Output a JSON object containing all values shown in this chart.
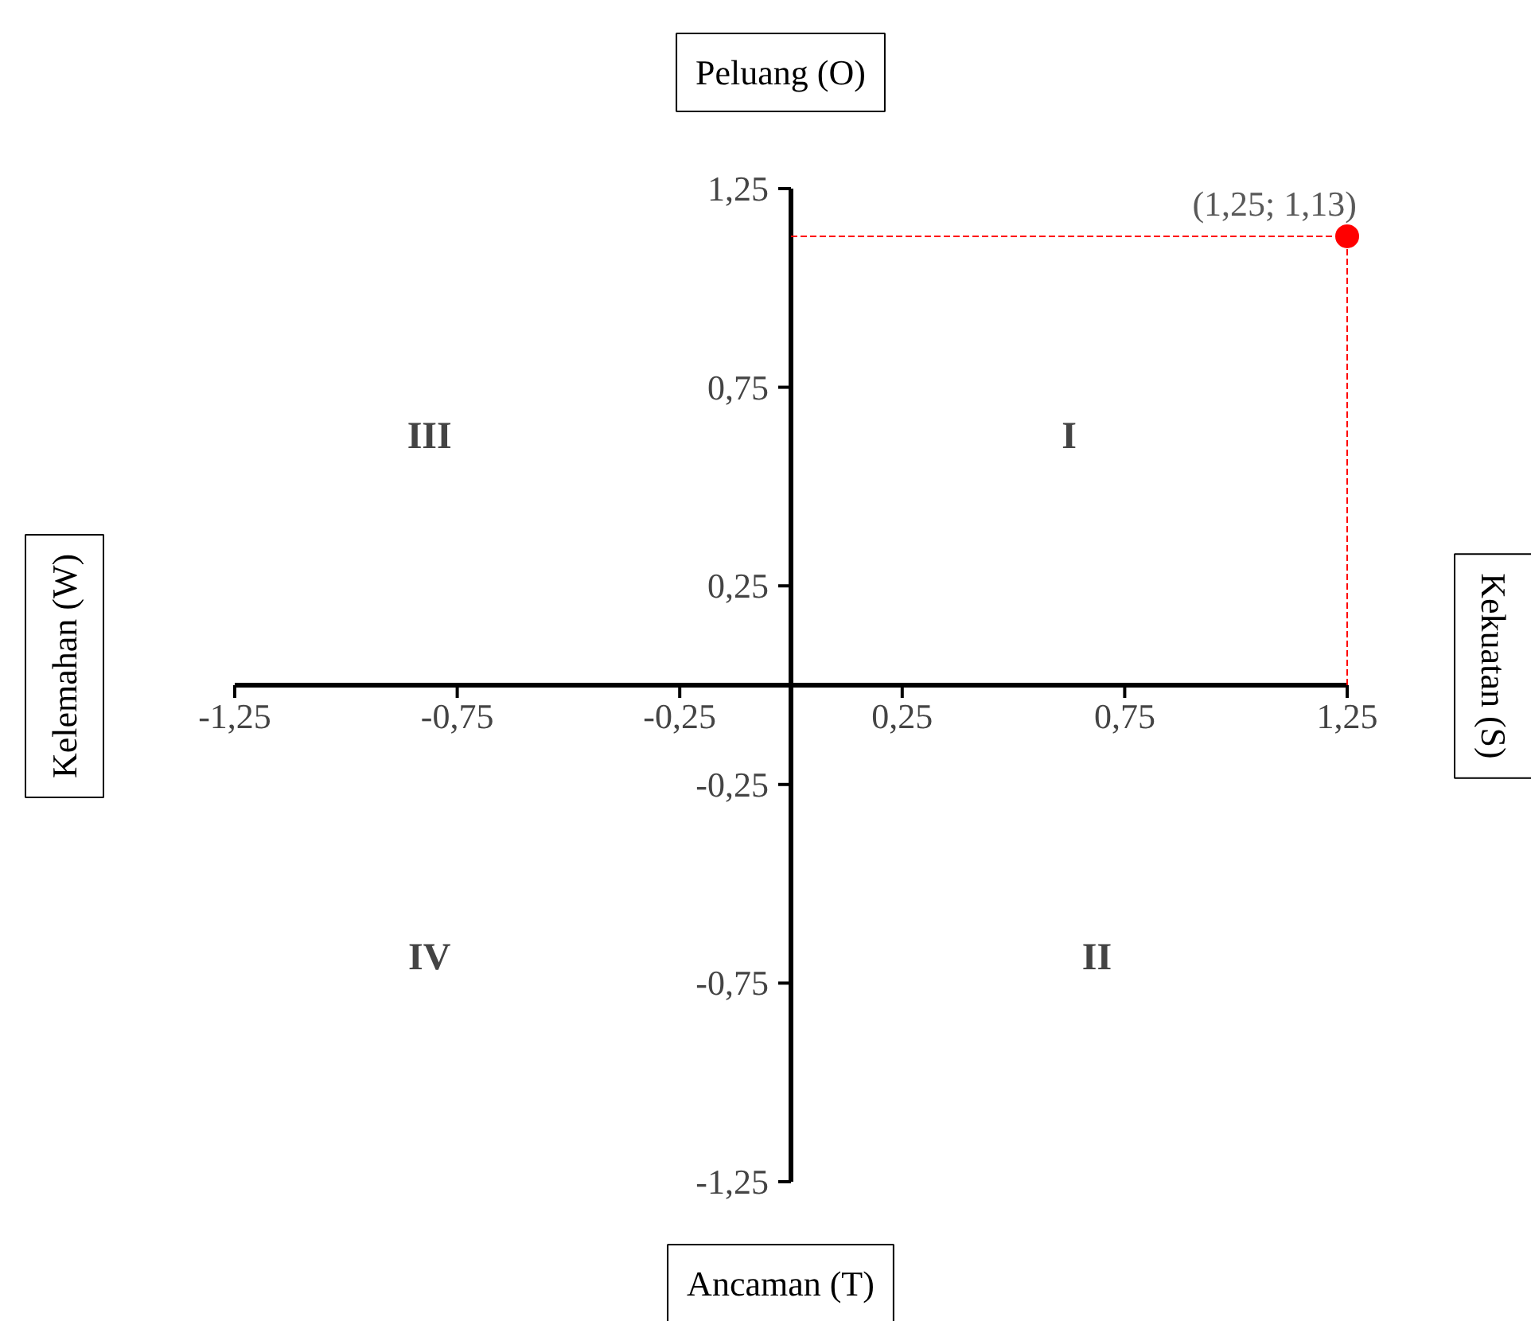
{
  "chart_data": {
    "type": "scatter",
    "title": "Peluang (O)",
    "xlabel": "Ancaman (T)",
    "ylabel": "Kelemahan (W)",
    "y2label": "Kekuatan (S)",
    "x": [
      1.25
    ],
    "series": [
      {
        "color": "#ff0000",
        "values": [
          1.13
        ]
      }
    ],
    "marker": "circle",
    "xlim": [
      -1.25,
      1.25
    ],
    "ylim": [
      -1.25,
      1.25
    ],
    "xticks": [
      {
        "value": -1.25,
        "label": "-1,25"
      },
      {
        "value": -0.75,
        "label": "-0,75"
      },
      {
        "value": -0.25,
        "label": "-0,25"
      },
      {
        "value": 0.25,
        "label": "0,25"
      },
      {
        "value": 0.75,
        "label": "0,75"
      },
      {
        "value": 1.25,
        "label": "1,25"
      }
    ],
    "yticks": [
      {
        "value": -1.25,
        "label": "-1,25"
      },
      {
        "value": -0.75,
        "label": "-0,75"
      },
      {
        "value": -0.25,
        "label": "-0,25"
      },
      {
        "value": 0.25,
        "label": "0,25"
      },
      {
        "value": 0.75,
        "label": "0,75"
      },
      {
        "value": 1.25,
        "label": "1,25"
      }
    ],
    "ref_lines": [
      {
        "axis": "y",
        "value": 1.13,
        "color": "#ff0000",
        "line_style": "dashed"
      },
      {
        "axis": "x",
        "value": 1.25,
        "color": "#ff0000",
        "line_style": "dashed"
      }
    ],
    "annotations": [
      {
        "text": "(1,25; 1,13)",
        "x": 1.25,
        "y": 1.13
      },
      "I",
      "II",
      "III",
      "IV"
    ],
    "grid": false
  }
}
